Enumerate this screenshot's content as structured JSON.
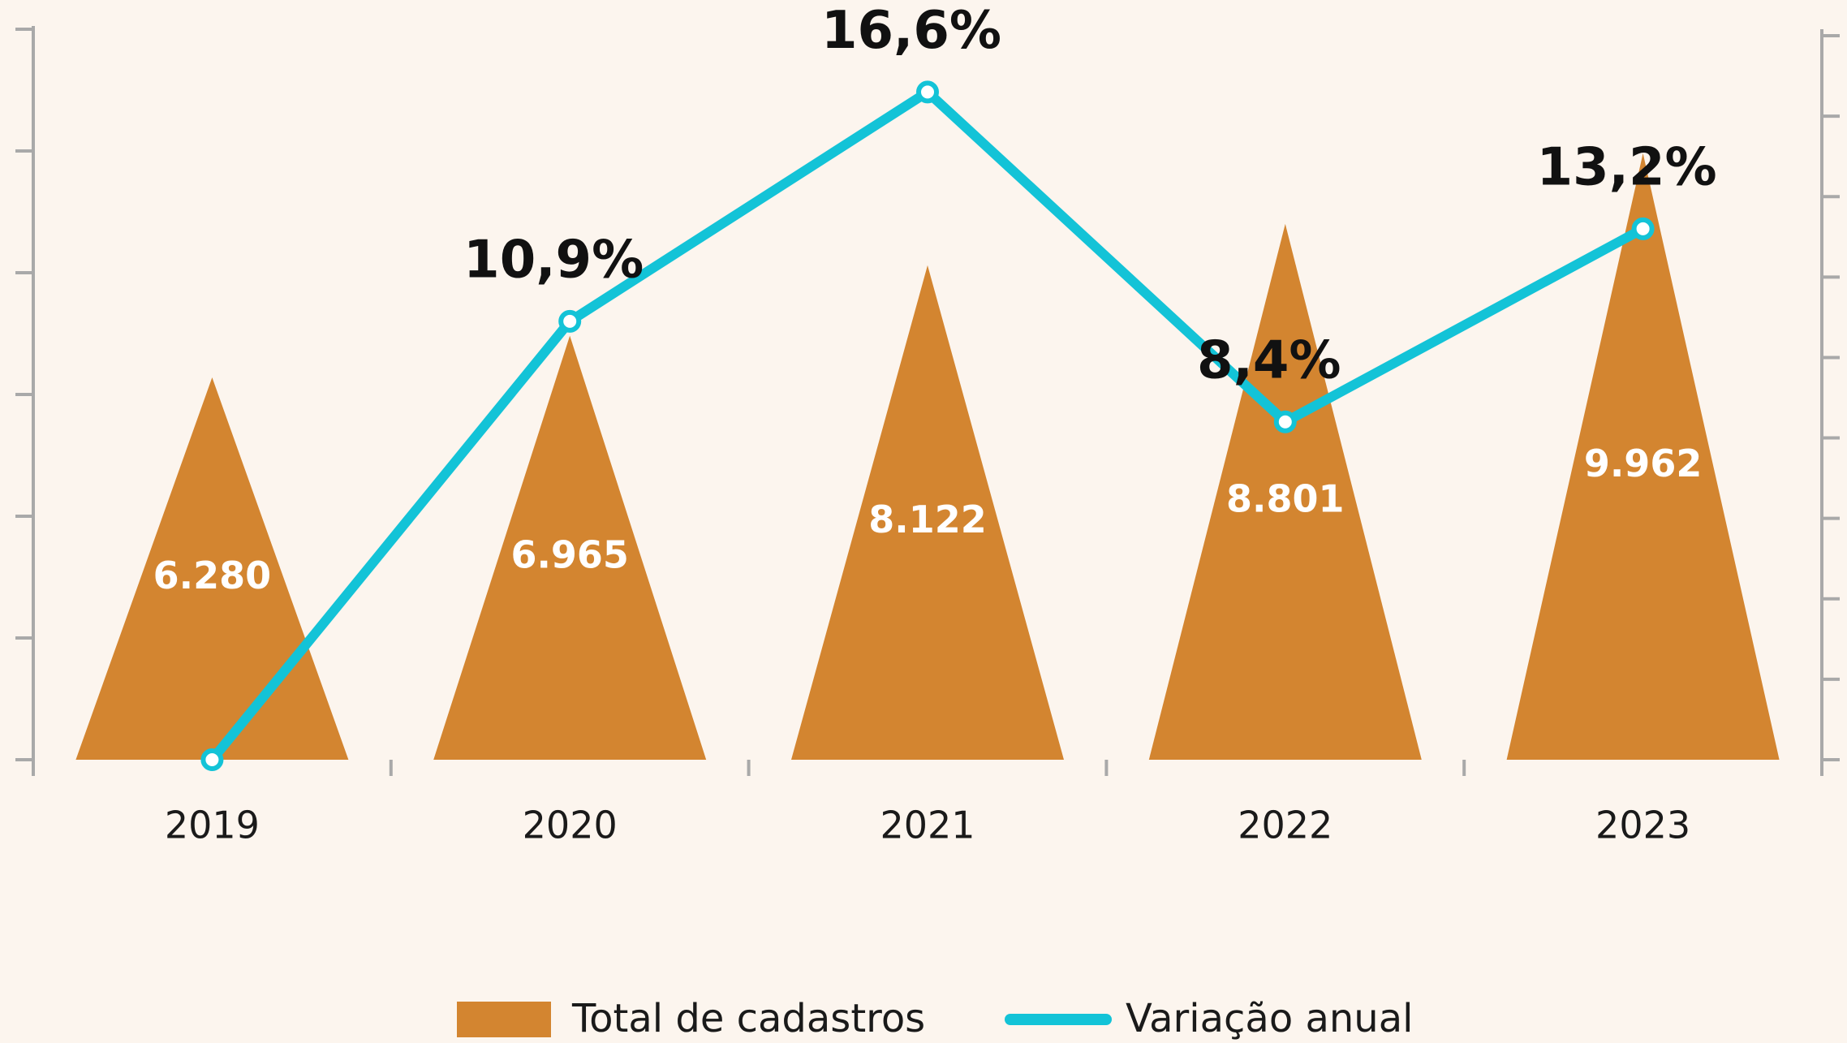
{
  "chart_data": {
    "type": "combo",
    "categories": [
      "2019",
      "2020",
      "2021",
      "2022",
      "2023"
    ],
    "series": [
      {
        "name": "Total de cadastros",
        "type": "bar",
        "shape": "triangle",
        "color": "#d38530",
        "axis": "y",
        "values": [
          6280,
          6965,
          8122,
          8801,
          9962
        ],
        "value_labels": [
          "6.280",
          "6.965",
          "8.122",
          "8.801",
          "9.962"
        ]
      },
      {
        "name": "Variação anual",
        "type": "line",
        "color": "#13c3d7",
        "axis": "y2",
        "values": [
          0,
          10.9,
          16.6,
          8.4,
          13.2
        ],
        "value_labels": [
          null,
          "10,9%",
          "16,6%",
          "8,4%",
          "13,2%"
        ]
      }
    ],
    "ylim": [
      0,
      12000
    ],
    "yticks": [
      0,
      2000,
      4000,
      6000,
      8000,
      10000,
      12000
    ],
    "y2lim": [
      0,
      18
    ],
    "y2ticks": [
      0,
      2,
      4,
      6,
      8,
      10,
      12,
      14,
      16,
      18
    ],
    "grid": false,
    "legend": "bottom"
  }
}
